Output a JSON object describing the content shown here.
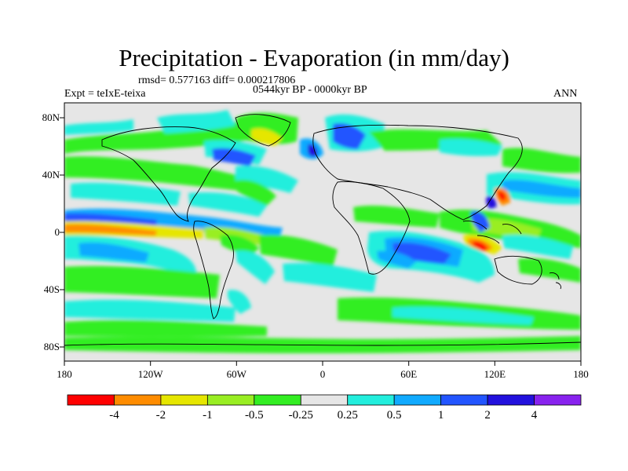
{
  "title": "Precipitation - Evaporation (in mm/day)",
  "stats_line": "rmsd= 0.577163 diff= 0.000217806",
  "period_line": "0544kyr BP - 0000kyr BP",
  "experiment_label": "Expt = teIxE-teixa",
  "season_label": "ANN",
  "lat_ticks": [
    "80N",
    "40N",
    "0",
    "40S",
    "80S"
  ],
  "lon_ticks": [
    "180",
    "120W",
    "60W",
    "0",
    "60E",
    "120E",
    "180"
  ],
  "colorbar": {
    "labels": [
      "-4",
      "-2",
      "-1",
      "-0.5",
      "-0.25",
      "0.25",
      "0.5",
      "1",
      "2",
      "4"
    ],
    "colors": [
      "#ff0000",
      "#ff8c00",
      "#e6e600",
      "#99ee22",
      "#33ee22",
      "#e6e6e6",
      "#22eedd",
      "#11aaff",
      "#2255ff",
      "#2211dd",
      "#8822ee"
    ]
  }
}
